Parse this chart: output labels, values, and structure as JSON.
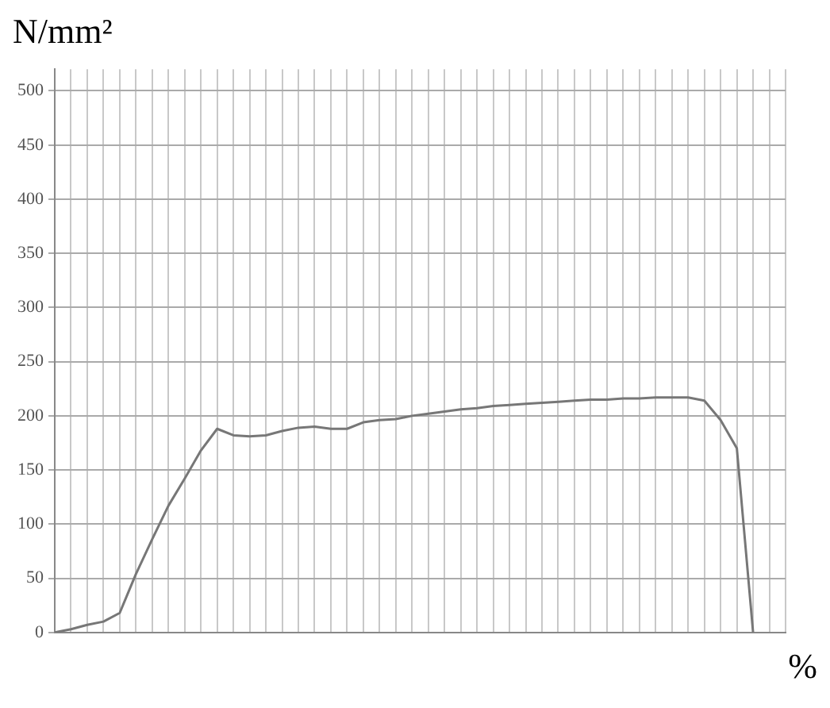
{
  "chart_data": {
    "type": "line",
    "ylabel": "N/mm²",
    "xlabel": "%",
    "categories": [
      null,
      null,
      null,
      null,
      null,
      null,
      null,
      null,
      null,
      null,
      null,
      null,
      null,
      null,
      null,
      null,
      null,
      null,
      null,
      null,
      null,
      null,
      null,
      null,
      null,
      null,
      null,
      null,
      null,
      null,
      null,
      null,
      null,
      null,
      null,
      null,
      null,
      null,
      null,
      null,
      null,
      null,
      null,
      null,
      null,
      null
    ],
    "series": [
      {
        "color": "#777777",
        "values": [
          0,
          3,
          7,
          10,
          18,
          54,
          86,
          117,
          142,
          168,
          188,
          182,
          181,
          182,
          186,
          189,
          190,
          188,
          188,
          194,
          196,
          197,
          200,
          202,
          204,
          206,
          207,
          209,
          210,
          211,
          212,
          213,
          214,
          215,
          215,
          216,
          216,
          217,
          217,
          217,
          214,
          196,
          170,
          0,
          null,
          null
        ]
      }
    ],
    "ylim": [
      0,
      520
    ],
    "yticks": [
      0,
      50,
      100,
      150,
      200,
      250,
      300,
      350,
      400,
      450,
      500
    ],
    "grid": true,
    "tick_labels": "y",
    "marker": "none",
    "line_style": "solid",
    "legend": false
  }
}
